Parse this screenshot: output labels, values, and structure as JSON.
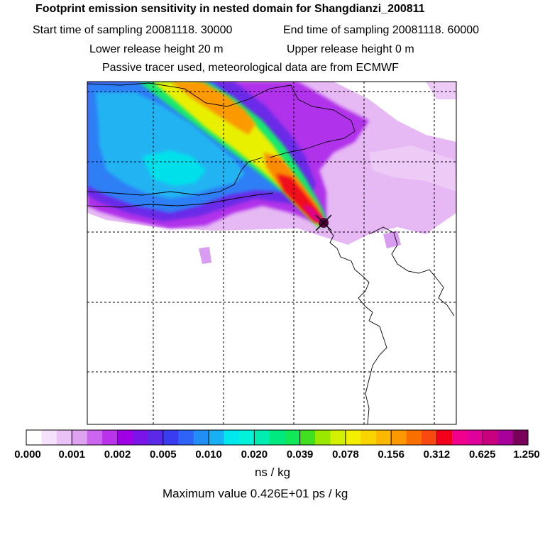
{
  "header": {
    "title": "Footprint emission sensitivity in nested domain for Shangdianzi_200811",
    "start_time": "Start time of sampling 20081118. 30000",
    "end_time": "End time of sampling 20081118. 60000",
    "lower_height": "Lower release height   20 m",
    "upper_height": "Upper release height    0 m",
    "tracer_note": "Passive tracer used, meteorological data are from ECMWF"
  },
  "colorbar": {
    "tick_labels": [
      "0.000",
      "0.001",
      "0.002",
      "0.005",
      "0.010",
      "0.020",
      "0.039",
      "0.078",
      "0.156",
      "0.312",
      "0.625",
      "1.250"
    ],
    "colors": [
      "#ffffff",
      "#f6e1fa",
      "#ebc2f5",
      "#dda2f0",
      "#cc66ee",
      "#b833ea",
      "#a000e6",
      "#7a14e8",
      "#5a2ae8",
      "#3a3cf2",
      "#2f63f8",
      "#208ef4",
      "#18b0f2",
      "#00e8ee",
      "#00f2d8",
      "#00ecb0",
      "#00e880",
      "#10e85a",
      "#40e020",
      "#9ae800",
      "#d2f000",
      "#f2f000",
      "#f8d400",
      "#fab800",
      "#fc9800",
      "#fa7000",
      "#f84a10",
      "#f2001a",
      "#f0008c",
      "#e0009c",
      "#c8007e",
      "#a8009a",
      "#78005a"
    ],
    "units": "ns / kg"
  },
  "max_value_text": "Maximum value  0.426E+01 ps / kg",
  "station_marker": "x-mark-icon"
}
